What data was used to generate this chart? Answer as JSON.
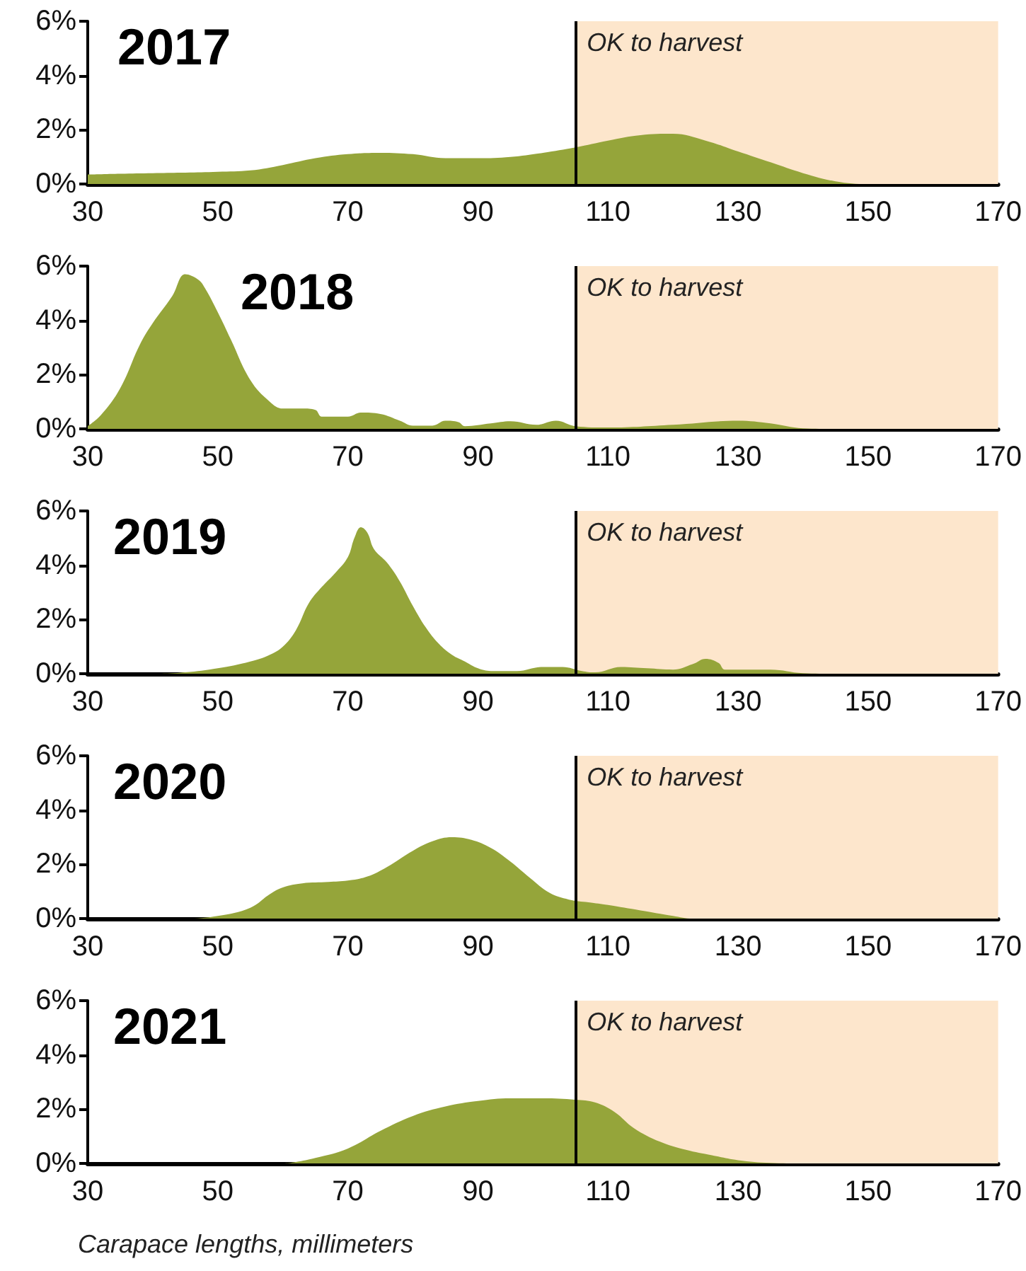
{
  "chart_data": [
    {
      "type": "area",
      "title": "2017",
      "x": [
        30,
        35,
        40,
        45,
        50,
        55,
        60,
        65,
        70,
        75,
        80,
        85,
        90,
        95,
        100,
        105,
        110,
        115,
        120,
        125,
        130,
        135,
        140,
        145,
        150,
        155,
        160,
        165,
        170
      ],
      "series": [
        {
          "color": "#95a53a",
          "values": [
            0.35,
            0.38,
            0.4,
            0.42,
            0.45,
            0.5,
            0.7,
            0.95,
            1.1,
            1.15,
            1.1,
            0.95,
            0.95,
            1.0,
            1.15,
            1.35,
            1.6,
            1.8,
            1.85,
            1.6,
            1.2,
            0.8,
            0.4,
            0.1,
            0,
            0,
            0,
            0,
            0
          ]
        }
      ],
      "xlim": [
        30,
        170
      ],
      "xticks": [
        30,
        50,
        70,
        90,
        110,
        130,
        150,
        170
      ],
      "ylim": [
        0,
        6
      ],
      "yticks": [
        {
          "value": 0,
          "label": "0%"
        },
        {
          "value": 2,
          "label": "2%"
        },
        {
          "value": 4,
          "label": "4%"
        },
        {
          "value": 6,
          "label": "6%"
        }
      ],
      "bands": [
        {
          "axis": "x",
          "from": 105,
          "to": 170,
          "label": "OK to harvest",
          "color": "#fde6cc"
        }
      ],
      "ref_lines": [
        {
          "axis": "x",
          "value": 105,
          "color": "#000000"
        }
      ],
      "grid": false
    },
    {
      "type": "area",
      "title": "2018",
      "x": [
        30,
        32,
        35,
        38,
        40,
        43,
        45,
        47,
        48,
        50,
        52,
        55,
        58,
        60,
        63,
        65,
        66,
        70,
        72,
        75,
        78,
        80,
        83,
        85,
        87,
        88,
        92,
        95,
        99,
        102,
        105,
        110,
        120,
        130,
        135,
        140,
        145,
        170
      ],
      "series": [
        {
          "color": "#95a53a",
          "values": [
            0.1,
            0.5,
            1.5,
            3.1,
            3.9,
            4.9,
            5.7,
            5.5,
            5.2,
            4.3,
            3.3,
            1.8,
            1.0,
            0.75,
            0.75,
            0.7,
            0.45,
            0.45,
            0.6,
            0.55,
            0.3,
            0.12,
            0.12,
            0.3,
            0.25,
            0.1,
            0.2,
            0.28,
            0.15,
            0.3,
            0.1,
            0.05,
            0.15,
            0.3,
            0.2,
            0.02,
            0,
            0
          ]
        }
      ],
      "xlim": [
        30,
        170
      ],
      "xticks": [
        30,
        50,
        70,
        90,
        110,
        130,
        150,
        170
      ],
      "ylim": [
        0,
        6
      ],
      "yticks": [
        {
          "value": 0,
          "label": "0%"
        },
        {
          "value": 2,
          "label": "2%"
        },
        {
          "value": 4,
          "label": "4%"
        },
        {
          "value": 6,
          "label": "6%"
        }
      ],
      "bands": [
        {
          "axis": "x",
          "from": 105,
          "to": 170,
          "label": "OK to harvest",
          "color": "#fde6cc"
        }
      ],
      "ref_lines": [
        {
          "axis": "x",
          "value": 105,
          "color": "#000000"
        }
      ],
      "grid": false
    },
    {
      "type": "area",
      "title": "2019",
      "x": [
        30,
        40,
        45,
        50,
        55,
        58,
        60,
        62,
        64,
        66,
        68,
        70,
        71,
        72,
        73,
        74,
        76,
        78,
        80,
        82,
        84,
        86,
        88,
        90,
        92,
        96,
        100,
        103,
        106,
        108,
        112,
        116,
        120,
        123,
        125,
        127,
        128,
        135,
        140,
        145,
        170
      ],
      "series": [
        {
          "color": "#95a53a",
          "values": [
            0,
            0,
            0.05,
            0.2,
            0.45,
            0.7,
            1.0,
            1.6,
            2.6,
            3.2,
            3.7,
            4.3,
            5.0,
            5.4,
            5.2,
            4.6,
            4.1,
            3.4,
            2.5,
            1.7,
            1.1,
            0.7,
            0.45,
            0.2,
            0.1,
            0.1,
            0.25,
            0.25,
            0.1,
            0.05,
            0.25,
            0.2,
            0.15,
            0.35,
            0.55,
            0.4,
            0.15,
            0.15,
            0.02,
            0,
            0
          ]
        }
      ],
      "xlim": [
        30,
        170
      ],
      "xticks": [
        30,
        50,
        70,
        90,
        110,
        130,
        150,
        170
      ],
      "ylim": [
        0,
        6
      ],
      "yticks": [
        {
          "value": 0,
          "label": "0%"
        },
        {
          "value": 2,
          "label": "2%"
        },
        {
          "value": 4,
          "label": "4%"
        },
        {
          "value": 6,
          "label": "6%"
        }
      ],
      "bands": [
        {
          "axis": "x",
          "from": 105,
          "to": 170,
          "label": "OK to harvest",
          "color": "#fde6cc"
        }
      ],
      "ref_lines": [
        {
          "axis": "x",
          "value": 105,
          "color": "#000000"
        }
      ],
      "grid": false
    },
    {
      "type": "area",
      "title": "2020",
      "x": [
        30,
        45,
        50,
        55,
        58,
        60,
        63,
        67,
        70,
        73,
        76,
        80,
        83,
        86,
        89,
        92,
        95,
        98,
        101,
        104,
        107,
        110,
        115,
        120,
        123,
        170
      ],
      "series": [
        {
          "color": "#95a53a",
          "values": [
            0,
            0,
            0.1,
            0.4,
            0.9,
            1.15,
            1.3,
            1.35,
            1.4,
            1.55,
            1.9,
            2.5,
            2.85,
            3.0,
            2.9,
            2.6,
            2.1,
            1.5,
            0.95,
            0.7,
            0.6,
            0.5,
            0.3,
            0.1,
            0,
            0
          ]
        }
      ],
      "xlim": [
        30,
        170
      ],
      "xticks": [
        30,
        50,
        70,
        90,
        110,
        130,
        150,
        170
      ],
      "ylim": [
        0,
        6
      ],
      "yticks": [
        {
          "value": 0,
          "label": "0%"
        },
        {
          "value": 2,
          "label": "2%"
        },
        {
          "value": 4,
          "label": "4%"
        },
        {
          "value": 6,
          "label": "6%"
        }
      ],
      "bands": [
        {
          "axis": "x",
          "from": 105,
          "to": 170,
          "label": "OK to harvest",
          "color": "#fde6cc"
        }
      ],
      "ref_lines": [
        {
          "axis": "x",
          "value": 105,
          "color": "#000000"
        }
      ],
      "grid": false
    },
    {
      "type": "area",
      "title": "2021",
      "xlabel": "Carapace lengths, millimeters",
      "x": [
        30,
        60,
        62,
        65,
        70,
        75,
        80,
        85,
        90,
        95,
        100,
        105,
        108,
        111,
        114,
        118,
        122,
        126,
        130,
        135,
        140,
        170
      ],
      "series": [
        {
          "color": "#95a53a",
          "values": [
            0,
            0,
            0.05,
            0.2,
            0.55,
            1.2,
            1.75,
            2.1,
            2.3,
            2.4,
            2.4,
            2.35,
            2.25,
            1.9,
            1.3,
            0.8,
            0.5,
            0.3,
            0.12,
            0.02,
            0,
            0
          ]
        }
      ],
      "xlim": [
        30,
        170
      ],
      "xticks": [
        30,
        50,
        70,
        90,
        110,
        130,
        150,
        170
      ],
      "ylim": [
        0,
        6
      ],
      "yticks": [
        {
          "value": 0,
          "label": "0%"
        },
        {
          "value": 2,
          "label": "2%"
        },
        {
          "value": 4,
          "label": "4%"
        },
        {
          "value": 6,
          "label": "6%"
        }
      ],
      "bands": [
        {
          "axis": "x",
          "from": 105,
          "to": 170,
          "label": "OK to harvest",
          "color": "#fde6cc"
        }
      ],
      "ref_lines": [
        {
          "axis": "x",
          "value": 105,
          "color": "#000000"
        }
      ],
      "grid": false
    }
  ]
}
